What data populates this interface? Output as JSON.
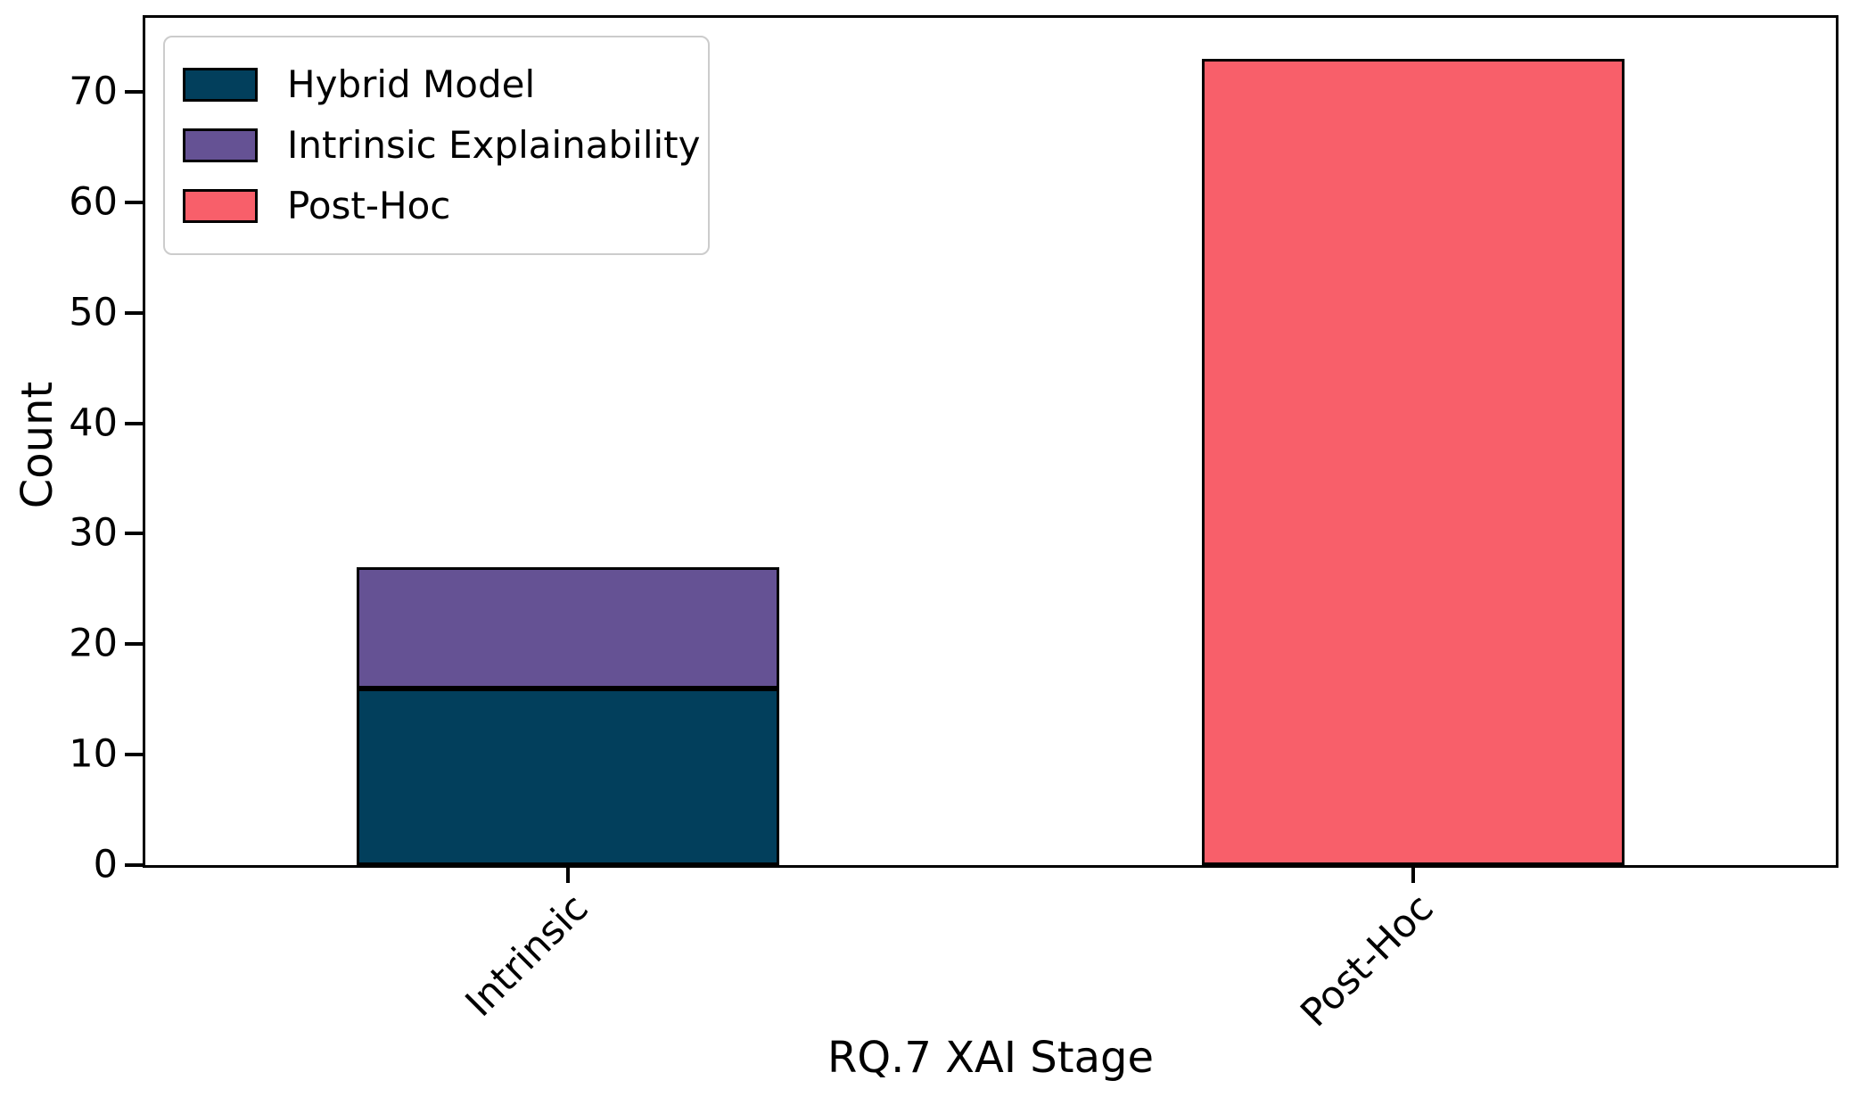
{
  "figure": {
    "background": "#ffffff",
    "text_color": "#000000",
    "spine_color": "#000000"
  },
  "chart_data": {
    "type": "bar",
    "stacked": true,
    "title": "",
    "xlabel": "RQ.7 XAI Stage",
    "ylabel": "Count",
    "categories": [
      "Intrinsic",
      "Post-Hoc"
    ],
    "series": [
      {
        "name": "Hybrid Model",
        "color": "#023f5c",
        "values": [
          16,
          0
        ]
      },
      {
        "name": "Intrinsic Explainability",
        "color": "#655294",
        "values": [
          11,
          0
        ]
      },
      {
        "name": "Post-Hoc",
        "color": "#f85f6a",
        "values": [
          0,
          73
        ]
      }
    ],
    "yticks": [
      0,
      10,
      20,
      30,
      40,
      50,
      60,
      70
    ],
    "ylim": [
      0,
      76.7
    ],
    "xlim": [
      -0.5,
      1.5
    ],
    "bar_width_category_units": 0.5,
    "xtick_rotation_deg": 45,
    "grid": false,
    "legend": {
      "position": "upper left",
      "border_color": "#cccccc",
      "edge_color": "#000000"
    }
  }
}
